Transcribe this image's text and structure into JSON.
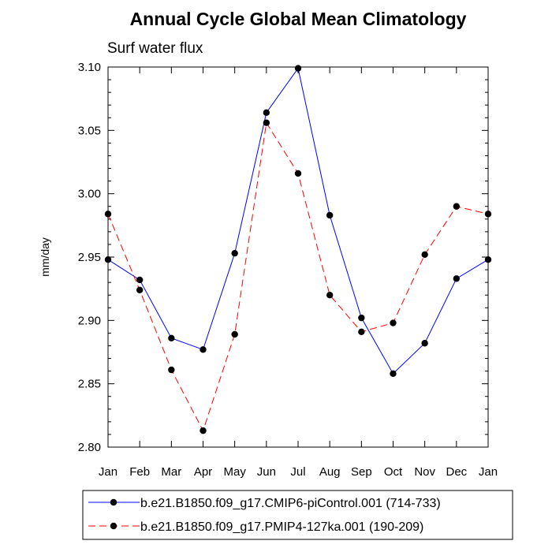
{
  "chart_data": {
    "type": "line",
    "title": "Annual Cycle Global Mean Climatology",
    "subtitle": "Surf water flux",
    "xlabel": "",
    "ylabel": "mm/day",
    "categories": [
      "Jan",
      "Feb",
      "Mar",
      "Apr",
      "May",
      "Jun",
      "Jul",
      "Aug",
      "Sep",
      "Oct",
      "Nov",
      "Dec",
      "Jan"
    ],
    "ylim": [
      2.8,
      3.1
    ],
    "yticks": [
      "2.80",
      "2.85",
      "2.90",
      "2.95",
      "3.00",
      "3.05",
      "3.10"
    ],
    "grid": false,
    "legend_position": "bottom",
    "series": [
      {
        "name": "b.e21.B1850.f09_g17.CMIP6-piControl.001 (714-733)",
        "color": "#0000ff",
        "dash": "solid",
        "values": [
          2.948,
          2.932,
          2.886,
          2.877,
          2.953,
          3.064,
          3.099,
          2.983,
          2.902,
          2.858,
          2.882,
          2.933,
          2.948
        ]
      },
      {
        "name": "b.e21.B1850.f09_g17.PMIP4-127ka.001 (190-209)",
        "color": "#ff0000",
        "dash": "dashed",
        "values": [
          2.984,
          2.924,
          2.861,
          2.813,
          2.889,
          3.056,
          3.016,
          2.92,
          2.891,
          2.898,
          2.952,
          2.99,
          2.984
        ]
      }
    ]
  }
}
